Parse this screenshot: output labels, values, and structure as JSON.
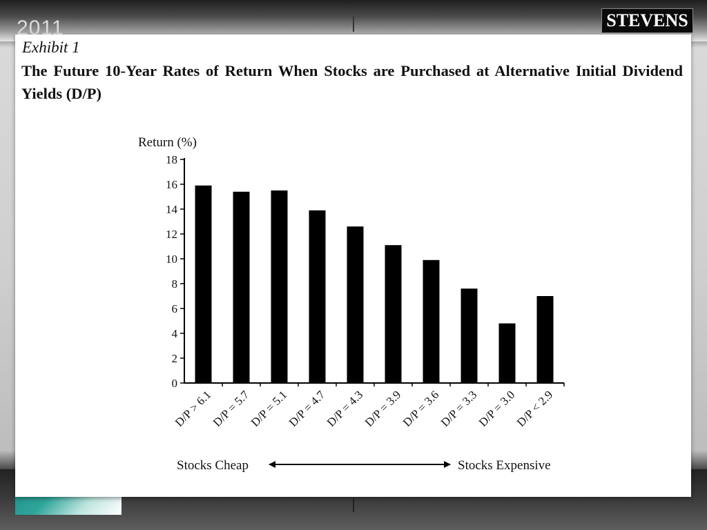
{
  "slide": {
    "year": "2011",
    "brand": "STEVENS"
  },
  "exhibit": {
    "label": "Exhibit 1",
    "title": "The Future 10-Year Rates of Return When Stocks are Purchased at Alternative Initial Dividend Yields (D/P)"
  },
  "chart_data": {
    "type": "bar",
    "title": "The Future 10-Year Rates of Return When Stocks are Purchased at Alternative Initial Dividend Yields (D/P)",
    "xlabel": "",
    "ylabel": "Return (%)",
    "ylim": [
      0,
      18
    ],
    "yticks": [
      0,
      2,
      4,
      6,
      8,
      10,
      12,
      14,
      16,
      18
    ],
    "categories": [
      "D/P > 6.1",
      "D/P = 5.7",
      "D/P = 5.1",
      "D/P = 4.7",
      "D/P = 4.3",
      "D/P = 3.9",
      "D/P = 3.6",
      "D/P = 3.3",
      "D/P = 3.0",
      "D/P < 2.9"
    ],
    "values": [
      15.9,
      15.4,
      15.5,
      13.9,
      12.6,
      11.1,
      9.9,
      7.6,
      4.8,
      7.0
    ],
    "bar_color": "#000000",
    "grid": false,
    "annotation": {
      "left": "Stocks Cheap",
      "right": "Stocks Expensive"
    }
  }
}
